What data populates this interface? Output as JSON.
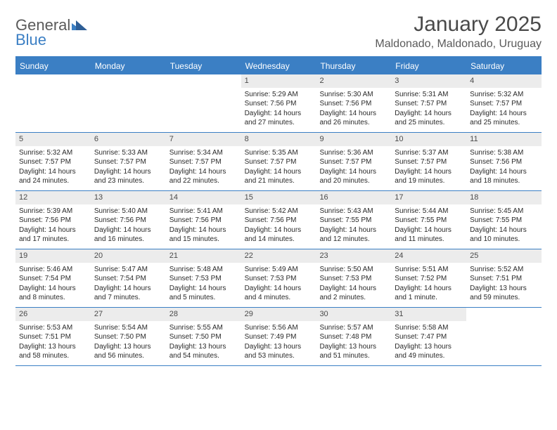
{
  "brand": {
    "line1": "General",
    "line2": "Blue"
  },
  "title": "January 2025",
  "location": "Maldonado, Maldonado, Uruguay",
  "colors": {
    "accent": "#3b7fc4",
    "header_bg": "#ececec",
    "text": "#2a2a2a",
    "muted": "#5a5a5a",
    "bg": "#ffffff"
  },
  "weekdays": [
    "Sunday",
    "Monday",
    "Tuesday",
    "Wednesday",
    "Thursday",
    "Friday",
    "Saturday"
  ],
  "first_weekday_index": 3,
  "days": [
    {
      "n": 1,
      "sunrise": "5:29 AM",
      "sunset": "7:56 PM",
      "daylight": "14 hours and 27 minutes."
    },
    {
      "n": 2,
      "sunrise": "5:30 AM",
      "sunset": "7:56 PM",
      "daylight": "14 hours and 26 minutes."
    },
    {
      "n": 3,
      "sunrise": "5:31 AM",
      "sunset": "7:57 PM",
      "daylight": "14 hours and 25 minutes."
    },
    {
      "n": 4,
      "sunrise": "5:32 AM",
      "sunset": "7:57 PM",
      "daylight": "14 hours and 25 minutes."
    },
    {
      "n": 5,
      "sunrise": "5:32 AM",
      "sunset": "7:57 PM",
      "daylight": "14 hours and 24 minutes."
    },
    {
      "n": 6,
      "sunrise": "5:33 AM",
      "sunset": "7:57 PM",
      "daylight": "14 hours and 23 minutes."
    },
    {
      "n": 7,
      "sunrise": "5:34 AM",
      "sunset": "7:57 PM",
      "daylight": "14 hours and 22 minutes."
    },
    {
      "n": 8,
      "sunrise": "5:35 AM",
      "sunset": "7:57 PM",
      "daylight": "14 hours and 21 minutes."
    },
    {
      "n": 9,
      "sunrise": "5:36 AM",
      "sunset": "7:57 PM",
      "daylight": "14 hours and 20 minutes."
    },
    {
      "n": 10,
      "sunrise": "5:37 AM",
      "sunset": "7:57 PM",
      "daylight": "14 hours and 19 minutes."
    },
    {
      "n": 11,
      "sunrise": "5:38 AM",
      "sunset": "7:56 PM",
      "daylight": "14 hours and 18 minutes."
    },
    {
      "n": 12,
      "sunrise": "5:39 AM",
      "sunset": "7:56 PM",
      "daylight": "14 hours and 17 minutes."
    },
    {
      "n": 13,
      "sunrise": "5:40 AM",
      "sunset": "7:56 PM",
      "daylight": "14 hours and 16 minutes."
    },
    {
      "n": 14,
      "sunrise": "5:41 AM",
      "sunset": "7:56 PM",
      "daylight": "14 hours and 15 minutes."
    },
    {
      "n": 15,
      "sunrise": "5:42 AM",
      "sunset": "7:56 PM",
      "daylight": "14 hours and 14 minutes."
    },
    {
      "n": 16,
      "sunrise": "5:43 AM",
      "sunset": "7:55 PM",
      "daylight": "14 hours and 12 minutes."
    },
    {
      "n": 17,
      "sunrise": "5:44 AM",
      "sunset": "7:55 PM",
      "daylight": "14 hours and 11 minutes."
    },
    {
      "n": 18,
      "sunrise": "5:45 AM",
      "sunset": "7:55 PM",
      "daylight": "14 hours and 10 minutes."
    },
    {
      "n": 19,
      "sunrise": "5:46 AM",
      "sunset": "7:54 PM",
      "daylight": "14 hours and 8 minutes."
    },
    {
      "n": 20,
      "sunrise": "5:47 AM",
      "sunset": "7:54 PM",
      "daylight": "14 hours and 7 minutes."
    },
    {
      "n": 21,
      "sunrise": "5:48 AM",
      "sunset": "7:53 PM",
      "daylight": "14 hours and 5 minutes."
    },
    {
      "n": 22,
      "sunrise": "5:49 AM",
      "sunset": "7:53 PM",
      "daylight": "14 hours and 4 minutes."
    },
    {
      "n": 23,
      "sunrise": "5:50 AM",
      "sunset": "7:53 PM",
      "daylight": "14 hours and 2 minutes."
    },
    {
      "n": 24,
      "sunrise": "5:51 AM",
      "sunset": "7:52 PM",
      "daylight": "14 hours and 1 minute."
    },
    {
      "n": 25,
      "sunrise": "5:52 AM",
      "sunset": "7:51 PM",
      "daylight": "13 hours and 59 minutes."
    },
    {
      "n": 26,
      "sunrise": "5:53 AM",
      "sunset": "7:51 PM",
      "daylight": "13 hours and 58 minutes."
    },
    {
      "n": 27,
      "sunrise": "5:54 AM",
      "sunset": "7:50 PM",
      "daylight": "13 hours and 56 minutes."
    },
    {
      "n": 28,
      "sunrise": "5:55 AM",
      "sunset": "7:50 PM",
      "daylight": "13 hours and 54 minutes."
    },
    {
      "n": 29,
      "sunrise": "5:56 AM",
      "sunset": "7:49 PM",
      "daylight": "13 hours and 53 minutes."
    },
    {
      "n": 30,
      "sunrise": "5:57 AM",
      "sunset": "7:48 PM",
      "daylight": "13 hours and 51 minutes."
    },
    {
      "n": 31,
      "sunrise": "5:58 AM",
      "sunset": "7:47 PM",
      "daylight": "13 hours and 49 minutes."
    }
  ],
  "labels": {
    "sunrise": "Sunrise:",
    "sunset": "Sunset:",
    "daylight": "Daylight:"
  }
}
